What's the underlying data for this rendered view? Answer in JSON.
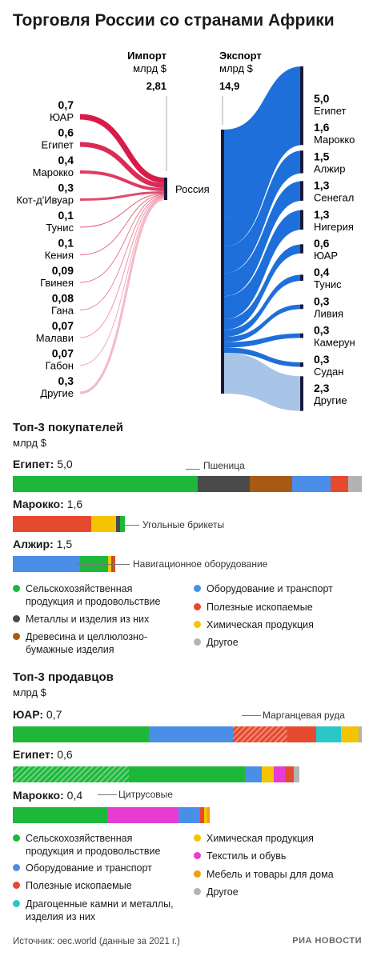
{
  "title": "Торговля России со странами Африки",
  "sankey": {
    "center_label": "Россия",
    "import": {
      "label": "Импорт",
      "unit": "млрд $",
      "total": "2,81",
      "color": "#d81b4a",
      "items": [
        {
          "country": "ЮАР",
          "value": "0,7"
        },
        {
          "country": "Египет",
          "value": "0,6"
        },
        {
          "country": "Марокко",
          "value": "0,4"
        },
        {
          "country": "Кот-д'Ивуар",
          "value": "0,3"
        },
        {
          "country": "Тунис",
          "value": "0,1"
        },
        {
          "country": "Кения",
          "value": "0,1"
        },
        {
          "country": "Гвинея",
          "value": "0,09"
        },
        {
          "country": "Гана",
          "value": "0,08"
        },
        {
          "country": "Малави",
          "value": "0,07"
        },
        {
          "country": "Габон",
          "value": "0,07"
        },
        {
          "country": "Другие",
          "value": "0,3"
        }
      ]
    },
    "export": {
      "label": "Экспорт",
      "unit": "млрд $",
      "total": "14,9",
      "color": "#1e6fd9",
      "items": [
        {
          "country": "Египет",
          "value": "5,0"
        },
        {
          "country": "Марокко",
          "value": "1,6"
        },
        {
          "country": "Алжир",
          "value": "1,5"
        },
        {
          "country": "Сенегал",
          "value": "1,3"
        },
        {
          "country": "Нигерия",
          "value": "1,3"
        },
        {
          "country": "ЮАР",
          "value": "0,6"
        },
        {
          "country": "Тунис",
          "value": "0,4"
        },
        {
          "country": "Ливия",
          "value": "0,3"
        },
        {
          "country": "Камерун",
          "value": "0,3"
        },
        {
          "country": "Судан",
          "value": "0,3"
        },
        {
          "country": "Другие",
          "value": "2,3"
        }
      ]
    }
  },
  "buyers": {
    "title": "Топ-3 покупателей",
    "unit": "млрд $",
    "rows": [
      {
        "country": "Египет:",
        "value": "5,0",
        "callout": "Пшеница",
        "segments": [
          {
            "cat": "agri",
            "share": 0.53,
            "hatch": true
          },
          {
            "cat": "metals",
            "share": 0.15
          },
          {
            "cat": "wood",
            "share": 0.12
          },
          {
            "cat": "equipment",
            "share": 0.11
          },
          {
            "cat": "minerals",
            "share": 0.05
          },
          {
            "cat": "other",
            "share": 0.04
          }
        ]
      },
      {
        "country": "Марокко:",
        "value": "1,6",
        "callout": "Угольные брикеты",
        "segments": [
          {
            "cat": "minerals",
            "share": 0.7,
            "hatch": true
          },
          {
            "cat": "chemical",
            "share": 0.22
          },
          {
            "cat": "metals",
            "share": 0.04
          },
          {
            "cat": "agri",
            "share": 0.04
          }
        ]
      },
      {
        "country": "Алжир:",
        "value": "1,5",
        "callout": "Навигационное оборудование",
        "segments": [
          {
            "cat": "equipment",
            "share": 0.66,
            "hatch": true
          },
          {
            "cat": "agri",
            "share": 0.27
          },
          {
            "cat": "chemical",
            "share": 0.03
          },
          {
            "cat": "wood",
            "share": 0.02
          },
          {
            "cat": "minerals",
            "share": 0.02
          }
        ]
      }
    ],
    "legend": [
      {
        "cat": "agri",
        "text": "Сельскохозяйственная продукция и продовольствие"
      },
      {
        "cat": "equipment",
        "text": "Оборудование и транспорт"
      },
      {
        "cat": "metals",
        "text": "Металлы и изделия из них"
      },
      {
        "cat": "minerals",
        "text": "Полезные ископаемые"
      },
      {
        "cat": "wood",
        "text": "Древесина и целлюлозно-бумажные изделия"
      },
      {
        "cat": "chemical",
        "text": "Химическая продукция"
      },
      {
        "cat": "other",
        "text": "Другое"
      }
    ]
  },
  "sellers": {
    "title": "Топ-3 продавцов",
    "unit": "млрд $",
    "rows": [
      {
        "country": "ЮАР:",
        "value": "0,7",
        "callout": "Марганцевая руда",
        "segments": [
          {
            "cat": "agri",
            "share": 0.39
          },
          {
            "cat": "equipment",
            "share": 0.24
          },
          {
            "cat": "minerals",
            "share": 0.24,
            "hatch_part": 0.65
          },
          {
            "cat": "gems",
            "share": 0.07
          },
          {
            "cat": "chemical",
            "share": 0.05
          },
          {
            "cat": "other",
            "share": 0.01
          }
        ]
      },
      {
        "country": "Египет:",
        "value": "0,6",
        "callout": "",
        "segments": [
          {
            "cat": "agri",
            "share": 0.81,
            "hatch_part": 0.5
          },
          {
            "cat": "equipment",
            "share": 0.06
          },
          {
            "cat": "chemical",
            "share": 0.04
          },
          {
            "cat": "textile",
            "share": 0.04
          },
          {
            "cat": "minerals",
            "share": 0.03
          },
          {
            "cat": "other",
            "share": 0.02
          }
        ]
      },
      {
        "country": "Марокко:",
        "value": "0,4",
        "callout": "Цитрусовые",
        "segments": [
          {
            "cat": "agri",
            "share": 0.48,
            "hatch": true
          },
          {
            "cat": "textile",
            "share": 0.36
          },
          {
            "cat": "equipment",
            "share": 0.11
          },
          {
            "cat": "minerals",
            "share": 0.02
          },
          {
            "cat": "chemical",
            "share": 0.02
          },
          {
            "cat": "furniture",
            "share": 0.01
          }
        ]
      }
    ],
    "legend": [
      {
        "cat": "agri",
        "text": "Сельскохозяйственная продукция и продовольствие"
      },
      {
        "cat": "chemical",
        "text": "Химическая продукция"
      },
      {
        "cat": "equipment",
        "text": "Оборудование и транспорт"
      },
      {
        "cat": "textile",
        "text": "Текстиль и обувь"
      },
      {
        "cat": "minerals",
        "text": "Полезные ископаемые"
      },
      {
        "cat": "furniture",
        "text": "Мебель и товары для дома"
      },
      {
        "cat": "gems",
        "text": "Драгоценные камни и металлы, изделия из них"
      },
      {
        "cat": "other",
        "text": "Другое"
      }
    ]
  },
  "colors": {
    "agri": "#1db83a",
    "equipment": "#4a8ee8",
    "metals": "#4a4a4a",
    "minerals": "#e64a2e",
    "wood": "#a65a14",
    "chemical": "#f5c400",
    "other": "#b3b3b3",
    "gems": "#2ac7c9",
    "textile": "#e63cd3",
    "furniture": "#f39c12"
  },
  "footer": {
    "source": "Источник: oec.world (данные за 2021 г.)",
    "brand": "РИА НОВОСТИ"
  },
  "chart_data": [
    {
      "type": "bar",
      "title": "Импорт",
      "categories": [
        "ЮАР",
        "Египет",
        "Марокко",
        "Кот-д'Ивуар",
        "Тунис",
        "Кения",
        "Гвинея",
        "Гана",
        "Малави",
        "Габон",
        "Другие"
      ],
      "values": [
        0.7,
        0.6,
        0.4,
        0.3,
        0.1,
        0.1,
        0.09,
        0.08,
        0.07,
        0.07,
        0.3
      ],
      "ylabel": "млрд $"
    },
    {
      "type": "bar",
      "title": "Экспорт",
      "categories": [
        "Египет",
        "Марокко",
        "Алжир",
        "Сенегал",
        "Нигерия",
        "ЮАР",
        "Тунис",
        "Ливия",
        "Камерун",
        "Судан",
        "Другие"
      ],
      "values": [
        5.0,
        1.6,
        1.5,
        1.3,
        1.3,
        0.6,
        0.4,
        0.3,
        0.3,
        0.3,
        2.3
      ],
      "ylabel": "млрд $"
    }
  ]
}
